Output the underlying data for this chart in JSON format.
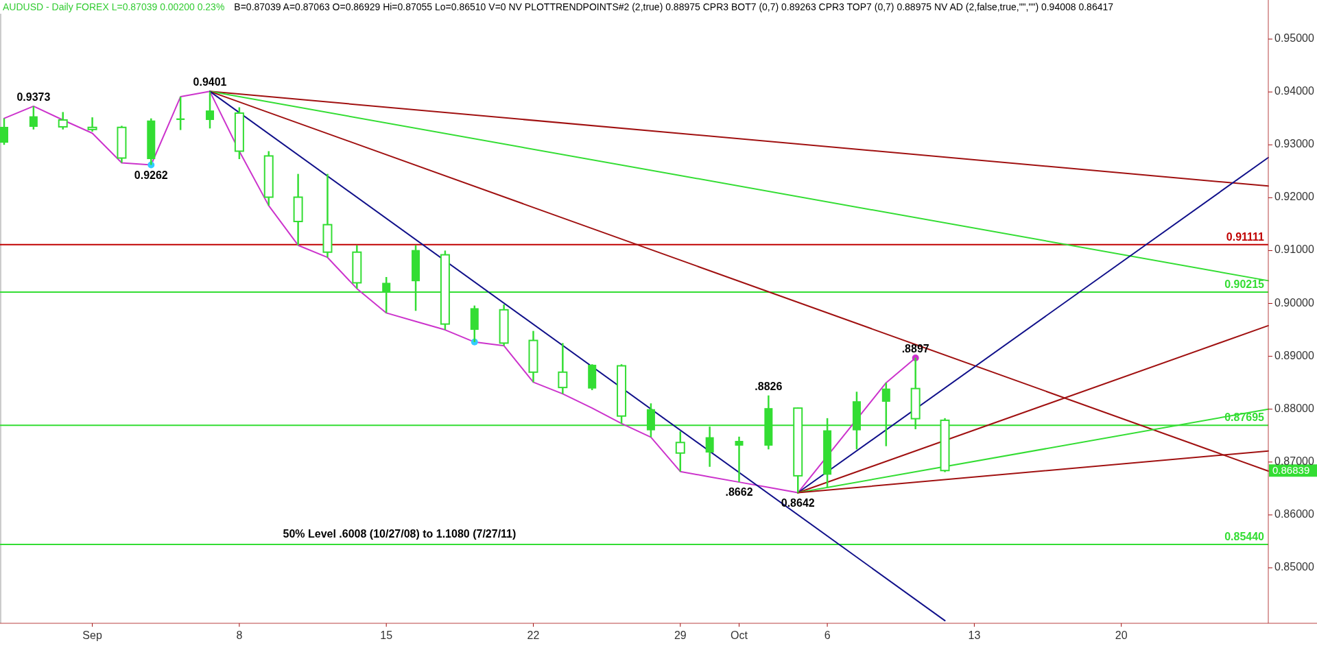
{
  "chart_data": {
    "type": "candlestick",
    "title": "AUDUSD - Daily  FOREX  L=0.87039  0.00200  0.23%",
    "subtitle": "B=0.87039  A=0.87063  O=0.86929  Hi=0.87055  Lo=0.86510  V=0  NV  PLOTTRENDPOINTS#2 (2,true)  0.88975  CPR3 BOT7 (0,7)  0.89263  CPR3 TOP7 (0,7)  0.88975  NV AD (2,false,true,\"\",\"\")  0.94008  0.86417",
    "color": "#33dd33",
    "categories": [
      null,
      null,
      null,
      "Sep",
      null,
      null,
      null,
      null,
      "8",
      null,
      null,
      null,
      null,
      "15",
      null,
      null,
      null,
      null,
      "22",
      null,
      null,
      null,
      null,
      "29",
      null,
      "Oct",
      null,
      null,
      "6",
      null,
      null,
      null,
      null,
      "13",
      null,
      null,
      null,
      null,
      "20",
      null,
      null,
      null,
      null,
      null
    ],
    "ohlc": [
      [
        0.9304,
        0.935,
        0.93,
        0.9334
      ],
      [
        0.9334,
        0.9373,
        0.9329,
        0.9354
      ],
      [
        0.9347,
        0.9362,
        0.9329,
        0.9334
      ],
      [
        0.9333,
        0.9352,
        0.9325,
        0.9329
      ],
      [
        0.9333,
        0.9336,
        0.9266,
        0.9275
      ],
      [
        0.9273,
        0.935,
        0.9262,
        0.9346
      ],
      [
        0.9347,
        0.9391,
        0.9328,
        0.935
      ],
      [
        0.9347,
        0.9401,
        0.9331,
        0.9365
      ],
      [
        0.936,
        0.9371,
        0.9273,
        0.9288
      ],
      [
        0.9279,
        0.9288,
        0.9185,
        0.9201
      ],
      [
        0.9201,
        0.9245,
        0.911,
        0.9155
      ],
      [
        0.9149,
        0.9245,
        0.9087,
        0.9097
      ],
      [
        0.9097,
        0.911,
        0.9028,
        0.9039
      ],
      [
        0.9022,
        0.905,
        0.8982,
        0.9039
      ],
      [
        0.9042,
        0.911,
        0.8986,
        0.9101
      ],
      [
        0.9092,
        0.91,
        0.895,
        0.8961
      ],
      [
        0.895,
        0.8996,
        0.8927,
        0.8991
      ],
      [
        0.8988,
        0.8998,
        0.892,
        0.8925
      ],
      [
        0.893,
        0.8948,
        0.8851,
        0.887
      ],
      [
        0.887,
        0.8925,
        0.8829,
        0.8841
      ],
      [
        0.8839,
        0.8885,
        0.8836,
        0.8884
      ],
      [
        0.8882,
        0.8885,
        0.8773,
        0.8787
      ],
      [
        0.876,
        0.8811,
        0.8747,
        0.88
      ],
      [
        0.8737,
        0.8758,
        0.8682,
        0.8717
      ],
      [
        0.8718,
        0.8767,
        0.8691,
        0.8747
      ],
      [
        0.8731,
        0.8748,
        0.8662,
        0.874
      ],
      [
        0.8731,
        0.8826,
        0.8724,
        0.8802
      ],
      [
        0.8802,
        0.8803,
        0.8642,
        0.8674
      ],
      [
        0.8676,
        0.8783,
        0.8651,
        0.876
      ],
      [
        0.876,
        0.8833,
        0.8724,
        0.8815
      ],
      [
        0.8814,
        0.885,
        0.873,
        0.8839
      ],
      [
        0.8839,
        0.8897,
        0.8762,
        0.8782
      ],
      [
        0.8779,
        0.8783,
        0.8681,
        0.86839
      ],
      null,
      null,
      null,
      null,
      null,
      null,
      null,
      null,
      null,
      null,
      null
    ],
    "series": [
      {
        "type": "line",
        "color": "#cc33cc",
        "values": [
          0.935,
          0.9373,
          0.9347,
          0.9322,
          0.9266,
          0.9262,
          0.9391,
          0.9401,
          0.9288,
          0.9185,
          0.911,
          0.9087,
          0.9028,
          0.8982,
          0.8966,
          0.895,
          0.8927,
          0.892,
          0.8851,
          0.8829,
          0.8802,
          0.8773,
          0.8747,
          0.8682,
          0.8672,
          0.8662,
          0.8652,
          0.8642,
          null,
          null,
          0.885,
          0.8897,
          null,
          null,
          null,
          null,
          null,
          null,
          null,
          null,
          null,
          null,
          null,
          null
        ]
      },
      {
        "type": "line",
        "color": "#a01010",
        "values": [
          null,
          null,
          null,
          null,
          null,
          null,
          null,
          0.9401,
          null,
          null,
          null,
          null,
          null,
          null,
          null,
          null,
          null,
          null,
          null,
          null,
          null,
          null,
          null,
          null,
          null,
          null,
          null,
          null,
          null,
          null,
          null,
          null,
          null,
          null,
          null,
          null,
          null,
          null,
          null,
          null,
          null,
          null,
          null,
          0.9222
        ]
      },
      {
        "type": "line",
        "color": "#33dd33",
        "values": [
          null,
          null,
          null,
          null,
          null,
          null,
          null,
          0.9401,
          null,
          null,
          null,
          null,
          null,
          null,
          null,
          null,
          null,
          null,
          null,
          null,
          null,
          null,
          null,
          null,
          null,
          null,
          null,
          null,
          null,
          null,
          null,
          null,
          null,
          null,
          null,
          null,
          null,
          null,
          null,
          null,
          null,
          null,
          null,
          0.9043
        ]
      },
      {
        "type": "line",
        "color": "#a01010",
        "values": [
          null,
          null,
          null,
          null,
          null,
          null,
          null,
          0.9401,
          null,
          null,
          null,
          null,
          null,
          null,
          null,
          null,
          null,
          null,
          null,
          null,
          null,
          null,
          null,
          null,
          null,
          null,
          null,
          null,
          null,
          null,
          null,
          null,
          null,
          null,
          null,
          null,
          null,
          null,
          null,
          null,
          null,
          null,
          null,
          0.8683
        ]
      },
      {
        "type": "line",
        "color": "#10108a",
        "values": [
          null,
          null,
          null,
          null,
          null,
          null,
          null,
          0.9401,
          null,
          null,
          null,
          null,
          null,
          null,
          null,
          null,
          null,
          null,
          null,
          null,
          null,
          null,
          null,
          null,
          null,
          null,
          null,
          null,
          null,
          null,
          null,
          null,
          0.84,
          null,
          null,
          null,
          null,
          null,
          null,
          null,
          null,
          null,
          null,
          null
        ]
      },
      {
        "type": "line",
        "color": "#10108a",
        "values": [
          null,
          null,
          null,
          null,
          null,
          null,
          null,
          null,
          null,
          null,
          null,
          null,
          null,
          null,
          null,
          null,
          null,
          null,
          null,
          null,
          null,
          null,
          null,
          null,
          null,
          null,
          null,
          0.8642,
          null,
          null,
          null,
          null,
          null,
          null,
          null,
          null,
          null,
          null,
          null,
          null,
          null,
          null,
          null,
          0.9276
        ]
      },
      {
        "type": "line",
        "color": "#a01010",
        "values": [
          null,
          null,
          null,
          null,
          null,
          null,
          null,
          null,
          null,
          null,
          null,
          null,
          null,
          null,
          null,
          null,
          null,
          null,
          null,
          null,
          null,
          null,
          null,
          null,
          null,
          null,
          null,
          0.8642,
          null,
          null,
          null,
          null,
          null,
          null,
          null,
          null,
          null,
          null,
          null,
          null,
          null,
          null,
          null,
          0.8958
        ]
      },
      {
        "type": "line",
        "color": "#33dd33",
        "values": [
          null,
          null,
          null,
          null,
          null,
          null,
          null,
          null,
          null,
          null,
          null,
          null,
          null,
          null,
          null,
          null,
          null,
          null,
          null,
          null,
          null,
          null,
          null,
          null,
          null,
          null,
          null,
          0.8642,
          null,
          null,
          null,
          null,
          null,
          null,
          null,
          null,
          null,
          null,
          null,
          null,
          null,
          null,
          null,
          0.88
        ]
      },
      {
        "type": "line",
        "color": "#a01010",
        "values": [
          null,
          null,
          null,
          null,
          null,
          null,
          null,
          null,
          null,
          null,
          null,
          null,
          null,
          null,
          null,
          null,
          null,
          null,
          null,
          null,
          null,
          null,
          null,
          null,
          null,
          null,
          null,
          0.8642,
          null,
          null,
          null,
          null,
          null,
          null,
          null,
          null,
          null,
          null,
          null,
          null,
          null,
          null,
          null,
          0.8721
        ]
      },
      {
        "type": "scatter",
        "color": "#33ccff",
        "marker": "circle",
        "values": [
          null,
          null,
          null,
          null,
          null,
          0.9262,
          null,
          null,
          null,
          null,
          null,
          null,
          null,
          null,
          null,
          null,
          0.8927,
          null,
          null,
          null,
          null,
          null,
          null,
          null,
          null,
          null,
          null,
          null,
          null,
          null,
          null,
          null,
          null,
          null,
          null,
          null,
          null,
          null,
          null,
          null,
          null,
          null,
          null,
          null
        ]
      },
      {
        "type": "scatter",
        "color": "#cc33cc",
        "marker": "circle",
        "values": [
          null,
          null,
          null,
          null,
          null,
          null,
          null,
          null,
          null,
          null,
          null,
          null,
          null,
          null,
          null,
          null,
          null,
          null,
          null,
          null,
          null,
          null,
          null,
          null,
          null,
          null,
          null,
          null,
          null,
          null,
          null,
          0.8897,
          null,
          null,
          null,
          null,
          null,
          null,
          null,
          null,
          null,
          null,
          null,
          null
        ]
      }
    ],
    "ref_lines": [
      {
        "axis": "y",
        "value": 0.91111,
        "label": "0.91111",
        "color": "#c00000"
      },
      {
        "axis": "y",
        "value": 0.90215,
        "label": "0.90215",
        "color": "#33dd33"
      },
      {
        "axis": "y",
        "value": 0.87695,
        "label": "0.87695",
        "color": "#33dd33"
      },
      {
        "axis": "y",
        "value": 0.8544,
        "label": "0.85440",
        "color": "#33dd33"
      }
    ],
    "annotations": [
      {
        "text": "0.9373",
        "y": 0.9373
      },
      {
        "text": "0.9262",
        "y": 0.9262
      },
      {
        "text": "0.9401",
        "y": 0.9401
      },
      {
        "text": ".8662",
        "y": 0.8662
      },
      {
        "text": ".8826",
        "y": 0.8826
      },
      {
        "text": "0.8642",
        "y": 0.8642
      },
      {
        "text": ".8897",
        "y": 0.8897
      },
      "0.86839",
      {
        "text": "50% Level    .6008 (10/27/08) to 1.1080 (7/27/11)",
        "y": 0.8544
      }
    ],
    "ylim": [
      0.8395,
      0.9548
    ],
    "yticks": [
      {
        "value": 0.85,
        "label": "0.85000"
      },
      {
        "value": 0.86,
        "label": "0.86000"
      },
      {
        "value": 0.87,
        "label": "0.87000"
      },
      {
        "value": 0.88,
        "label": "0.88000"
      },
      {
        "value": 0.89,
        "label": "0.89000"
      },
      {
        "value": 0.9,
        "label": "0.90000"
      },
      {
        "value": 0.91,
        "label": "0.91000"
      },
      {
        "value": 0.92,
        "label": "0.92000"
      },
      {
        "value": 0.93,
        "label": "0.93000"
      },
      {
        "value": 0.94,
        "label": "0.94000"
      },
      {
        "value": 0.95,
        "label": "0.95000"
      }
    ]
  }
}
